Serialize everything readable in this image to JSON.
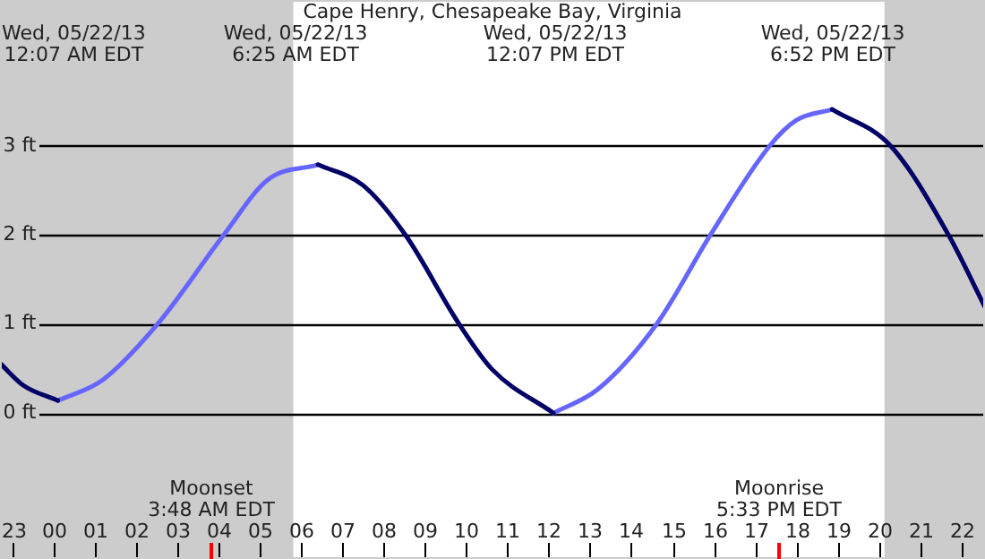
{
  "chart_data": {
    "type": "line",
    "title": "Cape Henry, Chesapeake Bay, Virginia",
    "x": [
      "--05-21T22:43",
      "--05-21T23:17",
      "--05-22T00:07",
      "--05-22T01:12",
      "--05-22T02:32",
      "--05-22T04:08",
      "--05-22T05:12",
      "--05-22T06:25",
      "--05-22T07:30",
      "--05-22T08:32",
      "--05-22T09:50",
      "--05-22T10:38",
      "--05-22T12:07",
      "--05-22T13:12",
      "--05-22T14:37",
      "--05-22T15:55",
      "--05-22T17:21",
      "--05-22T18:00",
      "--05-22T18:52",
      "--05-22T20:17",
      "--05-22T21:41",
      "--05-22T22:34"
    ],
    "series": [
      {
        "color": "#000066",
        "values": [
          0.56,
          0.31,
          0.14,
          null,
          null,
          null,
          null,
          2.79,
          2.56,
          2,
          1,
          0.49,
          0,
          null,
          null,
          null,
          null,
          null,
          3.41,
          3,
          2,
          1.19
        ]
      },
      {
        "color": "#6666ff",
        "values": [
          null,
          null,
          0.14,
          0.37,
          1,
          2,
          2.62,
          2.79,
          null,
          null,
          null,
          null,
          0,
          0.27,
          1,
          2,
          3,
          3.29,
          3.41,
          null,
          null,
          null
        ]
      }
    ],
    "xlim": [
      "--05-21T22:43",
      "--05-22T22:34"
    ],
    "xticks": [
      {
        "value": "--05-21T23:00",
        "label": "23"
      },
      {
        "value": "--05-22T00:00",
        "label": "00"
      },
      {
        "value": "--05-22T01:00",
        "label": "01"
      },
      {
        "value": "--05-22T02:00",
        "label": "02"
      },
      {
        "value": "--05-22T03:00",
        "label": "03"
      },
      {
        "value": "--05-22T04:00",
        "label": "04"
      },
      {
        "value": "--05-22T05:00",
        "label": "05"
      },
      {
        "value": "--05-22T06:00",
        "label": "06"
      },
      {
        "value": "--05-22T07:00",
        "label": "07"
      },
      {
        "value": "--05-22T08:00",
        "label": "08"
      },
      {
        "value": "--05-22T09:00",
        "label": "09"
      },
      {
        "value": "--05-22T10:00",
        "label": "10"
      },
      {
        "value": "--05-22T11:00",
        "label": "11"
      },
      {
        "value": "--05-22T12:00",
        "label": "12"
      },
      {
        "value": "--05-22T13:00",
        "label": "13"
      },
      {
        "value": "--05-22T14:00",
        "label": "14"
      },
      {
        "value": "--05-22T15:00",
        "label": "15"
      },
      {
        "value": "--05-22T16:00",
        "label": "16"
      },
      {
        "value": "--05-22T17:00",
        "label": "17"
      },
      {
        "value": "--05-22T18:00",
        "label": "18"
      },
      {
        "value": "--05-22T19:00",
        "label": "19"
      },
      {
        "value": "--05-22T20:00",
        "label": "20"
      },
      {
        "value": "--05-22T21:00",
        "label": "21"
      },
      {
        "value": "--05-22T22:00",
        "label": "22"
      }
    ],
    "ylim": [
      -1.64,
      4.64
    ],
    "yticks": [
      {
        "value": 0,
        "label": "0 ft"
      },
      {
        "value": 1,
        "label": "1 ft"
      },
      {
        "value": 2,
        "label": "2 ft"
      },
      {
        "value": 3,
        "label": "3 ft"
      }
    ],
    "grid": "y",
    "legend": false,
    "marker": "none",
    "line_style": "solid",
    "bands": [
      {
        "axis": "x",
        "from": "--05-21T22:43",
        "to": "--05-22T05:49",
        "color": "#cccccc"
      },
      {
        "axis": "x",
        "from": "--05-22T20:08",
        "to": "--05-22T22:34",
        "color": "#cccccc"
      }
    ],
    "annotations": [
      "Wed, 05/22/13\n12:07 AM EDT",
      "Wed, 05/22/13\n6:25 AM EDT",
      "Wed, 05/22/13\n12:07 PM EDT",
      "Wed, 05/22/13\n6:52 PM EDT",
      "Moonset\n3:48 AM EDT",
      "Moonrise\n5:33 PM EDT"
    ]
  }
}
